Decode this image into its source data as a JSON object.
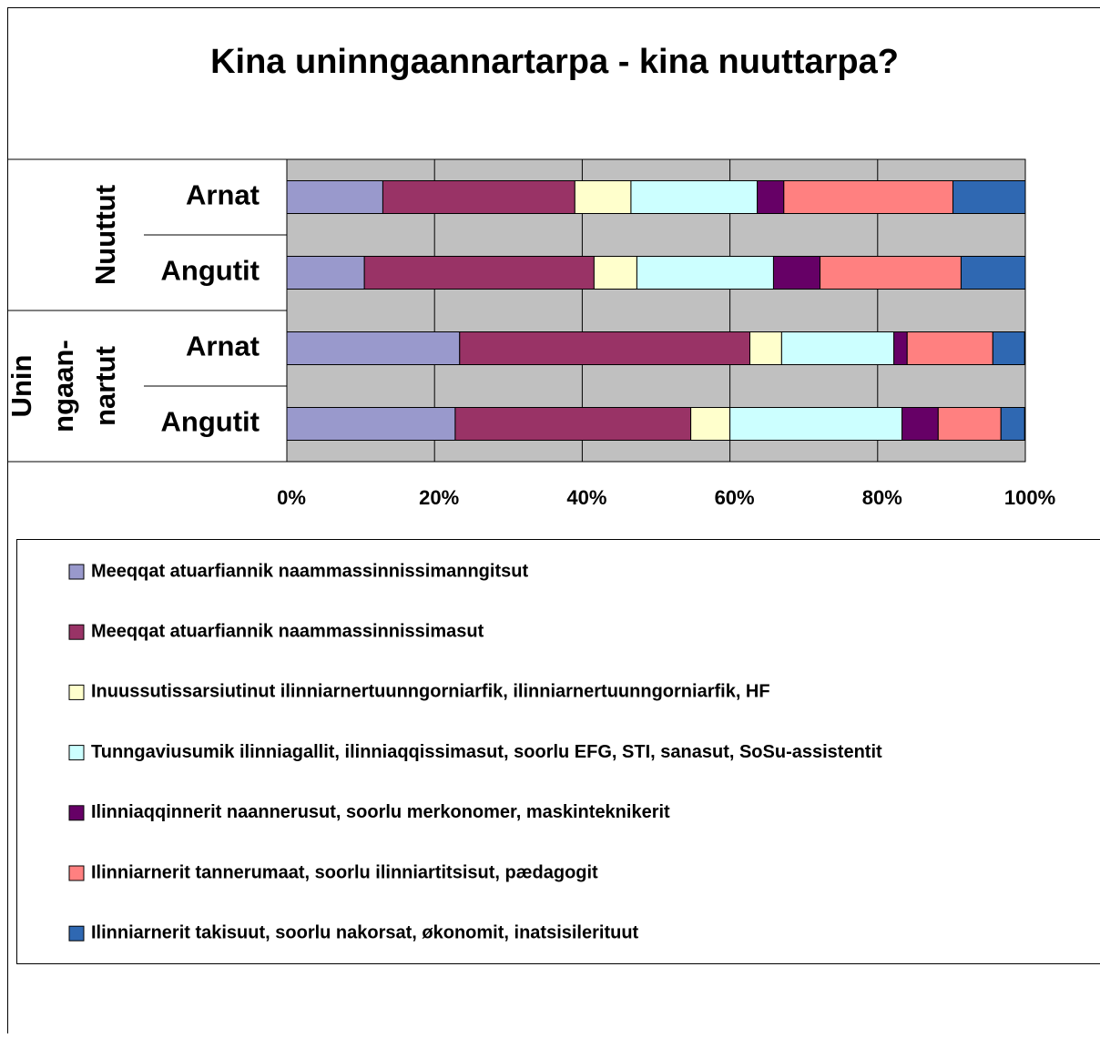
{
  "chart_data": {
    "type": "stacked_bar_horizontal",
    "title": "Kina uninngaannartarpa - kina nuuttarpa?",
    "groups": [
      {
        "lines": [
          "Nuuttut"
        ],
        "rows": [
          0,
          1
        ]
      },
      {
        "lines": [
          "Unin",
          "ngaan-",
          "nartut"
        ],
        "rows": [
          2,
          3
        ]
      }
    ],
    "categories": [
      "Arnat",
      "Angutit",
      "Arnat",
      "Angutit"
    ],
    "series": [
      {
        "name": "Meeqqat atuarfiannik naammassinnissimanngitsut",
        "color": "#9999cc",
        "values": [
          13,
          10.5,
          23.4,
          22.8
        ]
      },
      {
        "name": "Meeqqat atuarfiannik naammassinnissimasut",
        "color": "#993366",
        "values": [
          26,
          31.1,
          39.3,
          31.9
        ]
      },
      {
        "name": "Inuussutissarsiutinut ilinniarnertuunngorniarfik, ilinniarnertuunngorniarfik, HF",
        "color": "#ffffcc",
        "values": [
          7.6,
          5.8,
          4.3,
          5.3
        ]
      },
      {
        "name": "Tunngaviusumik ilinniagallit, ilinniaqqissimasut, soorlu EFG, STI, sanasut, SoSu-assistentit",
        "color": "#ccffff",
        "values": [
          17.1,
          18.5,
          15.2,
          23.3
        ]
      },
      {
        "name": "Ilinniaqqinnerit naannerusut, soorlu merkonomer, maskinteknikerit",
        "color": "#660066",
        "values": [
          3.6,
          6.3,
          1.8,
          4.9
        ]
      },
      {
        "name": "Ilinniarnerit tannerumaat, soorlu ilinniartitsisut, pædagogit",
        "color": "#ff8080",
        "values": [
          22.9,
          19.1,
          11.6,
          8.5
        ]
      },
      {
        "name": "Ilinniarnerit takisuut, soorlu nakorsat, økonomit, inatsisilerituut",
        "color": "#2f68b2",
        "values": [
          9.8,
          8.7,
          4.3,
          3.2
        ]
      }
    ],
    "xlim": [
      0,
      100
    ],
    "xticks": [
      {
        "value": 0,
        "label": "0%"
      },
      {
        "value": 20,
        "label": "20%"
      },
      {
        "value": 40,
        "label": "40%"
      },
      {
        "value": 60,
        "label": "60%"
      },
      {
        "value": 80,
        "label": "80%"
      },
      {
        "value": 100,
        "label": "100%"
      }
    ],
    "grid": true,
    "legend": "bottom"
  }
}
